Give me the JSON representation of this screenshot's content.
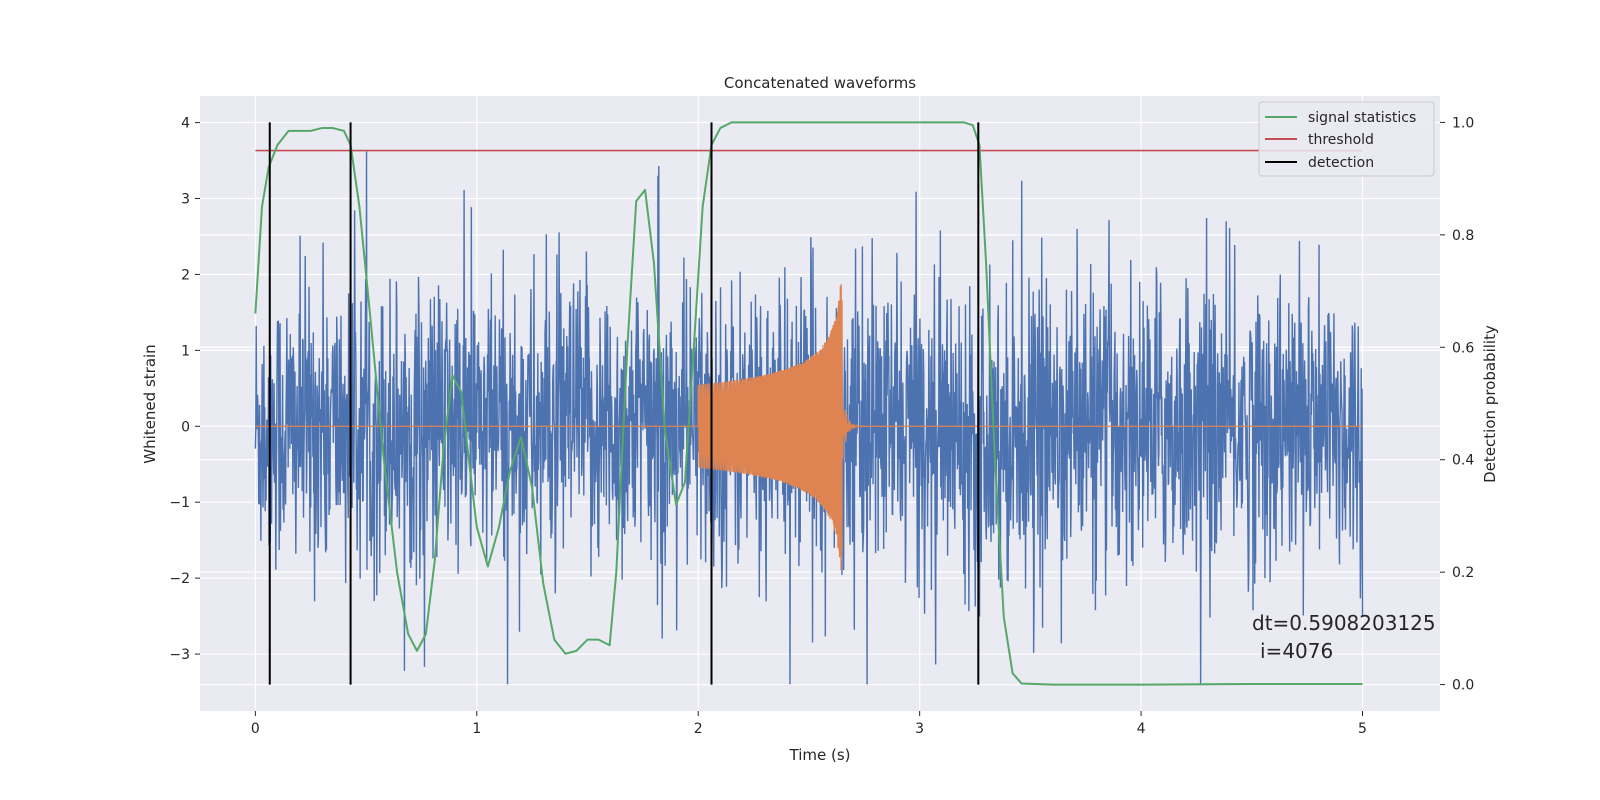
{
  "chart_data": {
    "type": "line",
    "title": "Concatenated waveforms",
    "xlabel": "Time (s)",
    "ylabel_left": "Whitened strain",
    "ylabel_right": "Detection probability",
    "xlim": [
      -0.25,
      5.35
    ],
    "ylim_left": [
      -3.75,
      4.35
    ],
    "ylim_right": [
      -0.047,
      1.047
    ],
    "x_ticks": [
      0,
      1,
      2,
      3,
      4,
      5
    ],
    "y_ticks_left": [
      -3,
      -2,
      -1,
      0,
      1,
      2,
      3,
      4
    ],
    "y_ticks_right": [
      0.0,
      0.2,
      0.4,
      0.6,
      0.8,
      1.0
    ],
    "grid": true,
    "legend_placement": "top-right",
    "legend": [
      {
        "label": "signal statistics",
        "color": "#55a868"
      },
      {
        "label": "threshold",
        "color": "#c44e52"
      },
      {
        "label": "detection",
        "color": "#000000"
      }
    ],
    "colors": {
      "noise": "#4c72b0",
      "waveform": "#dd8452",
      "signal_statistics": "#55a868",
      "threshold": "#c44e52",
      "detection": "#000000",
      "axes_bg": "#eaeaf2",
      "grid": "#ffffff"
    },
    "noise_series": {
      "x_range": [
        0,
        5
      ],
      "amplitude_typical": 1.3,
      "amplitude_peak": 4.0
    },
    "waveform_series": {
      "x_start": 2.0,
      "x_merger": 2.65,
      "x_end": 3.0,
      "amp_start": 0.55,
      "amp_peak": 1.9,
      "amp_min_peak": -2.3
    },
    "threshold_value": 0.95,
    "threshold_x_range": [
      0,
      5
    ],
    "detections_x": [
      0.065,
      0.43,
      2.06,
      3.265
    ],
    "signal_statistics": {
      "x": [
        0,
        0.03,
        0.06,
        0.1,
        0.15,
        0.2,
        0.25,
        0.3,
        0.35,
        0.4,
        0.43,
        0.47,
        0.52,
        0.58,
        0.64,
        0.69,
        0.73,
        0.77,
        0.81,
        0.85,
        0.89,
        0.93,
        0.97,
        1.0,
        1.05,
        1.1,
        1.15,
        1.2,
        1.25,
        1.3,
        1.35,
        1.4,
        1.45,
        1.5,
        1.55,
        1.6,
        1.63,
        1.68,
        1.72,
        1.76,
        1.8,
        1.85,
        1.9,
        1.94,
        1.98,
        2.02,
        2.06,
        2.1,
        2.15,
        2.2,
        2.3,
        2.5,
        2.7,
        2.9,
        3.1,
        3.2,
        3.24,
        3.27,
        3.3,
        3.34,
        3.38,
        3.42,
        3.46,
        3.6,
        4.0,
        4.5,
        5.0
      ],
      "y": [
        0.66,
        0.85,
        0.92,
        0.96,
        0.985,
        0.985,
        0.985,
        0.99,
        0.99,
        0.985,
        0.96,
        0.85,
        0.65,
        0.4,
        0.2,
        0.09,
        0.06,
        0.09,
        0.22,
        0.42,
        0.55,
        0.52,
        0.38,
        0.28,
        0.21,
        0.28,
        0.38,
        0.44,
        0.35,
        0.18,
        0.08,
        0.055,
        0.06,
        0.08,
        0.08,
        0.07,
        0.2,
        0.6,
        0.86,
        0.88,
        0.75,
        0.45,
        0.32,
        0.36,
        0.6,
        0.85,
        0.96,
        0.99,
        1.0,
        1.0,
        1.0,
        1.0,
        1.0,
        1.0,
        1.0,
        1.0,
        0.995,
        0.96,
        0.75,
        0.4,
        0.12,
        0.02,
        0.002,
        0.0,
        0.0,
        0.001,
        0.001
      ]
    },
    "annotation_lines": [
      "dt=0.5908203125",
      "i=4076"
    ]
  }
}
